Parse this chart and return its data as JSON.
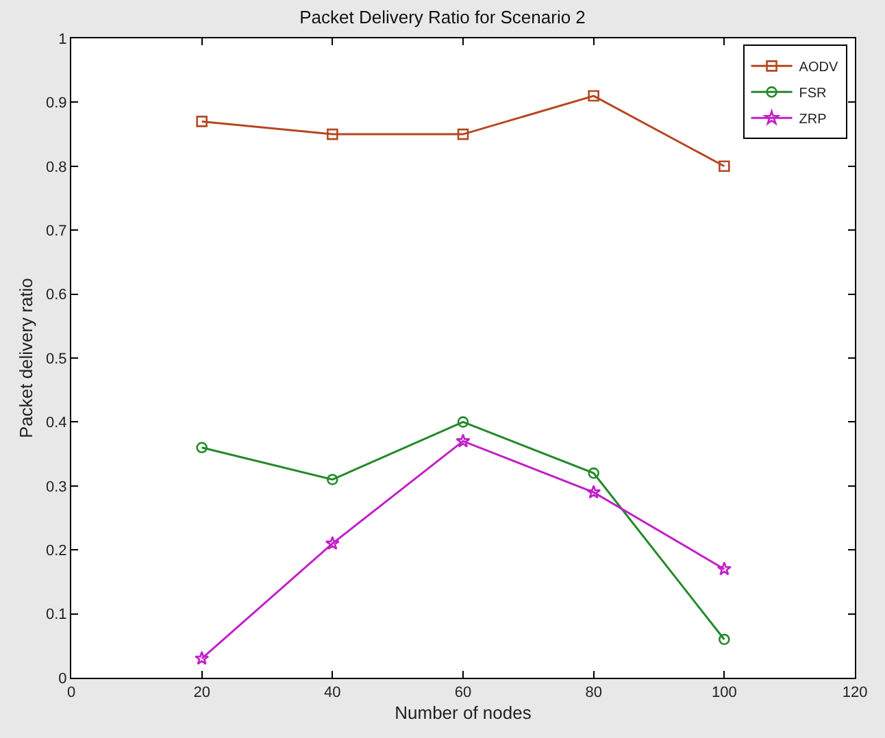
{
  "chart_data": {
    "type": "line",
    "title": "Packet Delivery Ratio for Scenario 2",
    "xlabel": "Number of nodes",
    "ylabel": "Packet delivery ratio",
    "x": [
      20,
      40,
      60,
      80,
      100
    ],
    "series": [
      {
        "name": "AODV",
        "color": "#b5471f",
        "marker": "square",
        "values": [
          0.87,
          0.85,
          0.85,
          0.91,
          0.8
        ]
      },
      {
        "name": "FSR",
        "color": "#23892a",
        "marker": "circle",
        "values": [
          0.36,
          0.31,
          0.4,
          0.32,
          0.06
        ]
      },
      {
        "name": "ZRP",
        "color": "#c21fc8",
        "marker": "star",
        "values": [
          0.03,
          0.21,
          0.37,
          0.29,
          0.17
        ]
      }
    ],
    "xlim": [
      0,
      120
    ],
    "xticks": [
      0,
      20,
      40,
      60,
      80,
      100,
      120
    ],
    "ylim": [
      0,
      1
    ],
    "yticks": [
      0,
      0.1,
      0.2,
      0.3,
      0.4,
      0.5,
      0.6,
      0.7,
      0.8,
      0.9,
      1
    ],
    "grid": false,
    "legend": "top right",
    "line_style": "solid"
  }
}
